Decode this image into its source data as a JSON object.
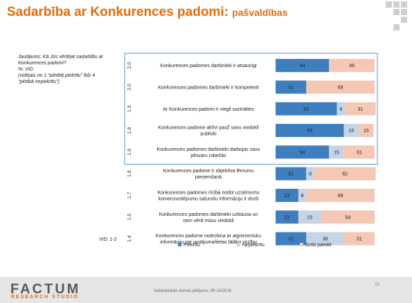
{
  "header": {
    "title": "Sadarbība ar Konkurences padomi:",
    "subtitle": "pašvaldības"
  },
  "question": {
    "lines": [
      "Jautājums: Kā Jūs vērtējat sadarbību ar",
      "Konkurences padomi?",
      "%; VID",
      "(vidējais no 1 \"pilnībā piekrītu\" līdz 4",
      "\"pilnībā nepiekrītu\")"
    ]
  },
  "vid_note": "VID: 1-2",
  "colors": {
    "agree": "#3f7fc0",
    "neutral": "#c6d5e6",
    "hard": "#f4c8b4",
    "title": "#e46c0a",
    "highlight_border": "#6fa6d8"
  },
  "chart_data": {
    "type": "bar",
    "orientation": "horizontal",
    "stacked": true,
    "xlim": [
      0,
      100
    ],
    "grid": false,
    "legend": "bottom",
    "categories": [
      {
        "label": [
          "Konkurences padomes darbinieki ir atsaucīgi"
        ],
        "vid": "2.0"
      },
      {
        "label": [
          "Konkurences padomes darbinieki ir kompetenti"
        ],
        "vid": "2.0"
      },
      {
        "label": [
          "Ar Konkurences padomi ir viegli sazināties"
        ],
        "vid": "1.9"
      },
      {
        "label": [
          "Konkurences padome aktīvi pauž savu viedokli",
          "publiski"
        ],
        "vid": "1.8"
      },
      {
        "label": [
          "Konkurences padomes darbinieki darbojas savu",
          "pilnvaru robežās"
        ],
        "vid": "1.8"
      },
      {
        "label": [
          "Konkurences padome ir objektīva lēmumu",
          "pieņemšanā"
        ],
        "vid": "1.8"
      },
      {
        "label": [
          "Konkurences padomes rīcībā nodot uzņēmumu",
          "komercnoslēpumu saturošu informāciju ir droši"
        ],
        "vid": "1.7"
      },
      {
        "label": [
          "Konkurences padomes darbinieki uzklausa un",
          "ņem vērā mūsu viedokli"
        ],
        "vid": "1.5"
      },
      {
        "label": [
          "Konkurences padome nodrošina ar atgriezenisku",
          "informāciju par jautājuma/lietas tālāko virzību"
        ],
        "vid": "1.4"
      }
    ],
    "highlighted_rows": 5,
    "series": [
      {
        "name": "Piekrītu",
        "color": "#3f7fc0",
        "values": [
          54,
          31,
          62,
          69,
          54,
          31,
          23,
          23,
          31
        ]
      },
      {
        "name": "Nepiekrītu",
        "color": "#c6d5e6",
        "values": [
          0,
          0,
          8,
          15,
          15,
          8,
          8,
          23,
          38
        ]
      },
      {
        "name": "Grūti pateikt",
        "color": "#f4c8b4",
        "values": [
          46,
          69,
          31,
          15,
          31,
          62,
          69,
          54,
          31
        ]
      }
    ]
  },
  "footer": {
    "logo": "FACTUM",
    "logo_sub": "RESEARCH STUDIO",
    "text": "Sabiedriskās domas pētījums, 09-10/2016",
    "page": "11"
  }
}
